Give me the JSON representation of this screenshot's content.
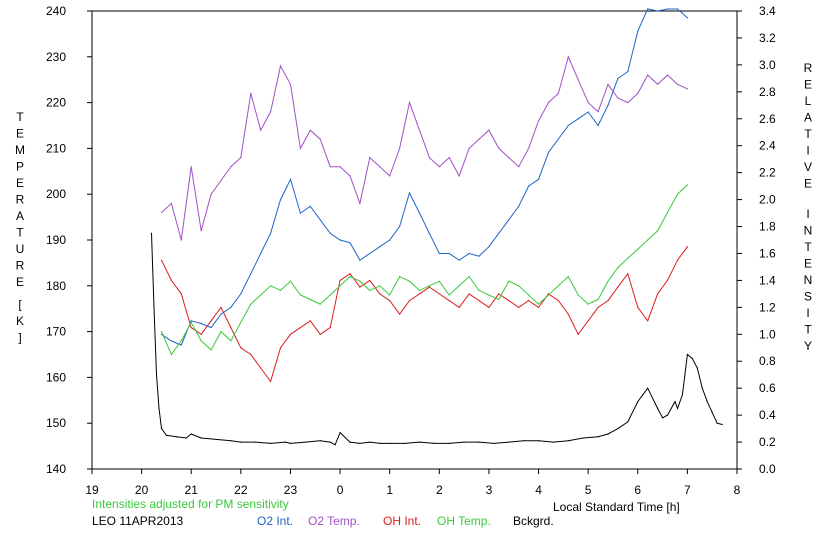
{
  "chart_data": {
    "type": "line",
    "title": "",
    "xlabel": "Local Standard Time [h]",
    "ylabel_left": "TEMPERATURE [K]",
    "ylabel_right": "RELATIVE INTENSITY",
    "note": "Intensities adjusted for PM sensitivity",
    "station": "LEO 11APR2013",
    "x_tick_labels": [
      "19",
      "20",
      "21",
      "22",
      "23",
      "0",
      "1",
      "2",
      "3",
      "4",
      "5",
      "6",
      "7",
      "8"
    ],
    "xlim": [
      19,
      32
    ],
    "ylim_left": [
      140,
      240
    ],
    "ylim_right": [
      0.0,
      3.4
    ],
    "y_left_ticks": [
      140,
      150,
      160,
      170,
      180,
      190,
      200,
      210,
      220,
      230,
      240
    ],
    "y_right_ticks": [
      "0.0",
      "0.2",
      "0.4",
      "0.6",
      "0.8",
      "1.0",
      "1.2",
      "1.4",
      "1.6",
      "1.8",
      "2.0",
      "2.2",
      "2.4",
      "2.6",
      "2.8",
      "3.0",
      "3.2",
      "3.4"
    ],
    "grid": false,
    "legend_position": "bottom",
    "series": [
      {
        "name": "O2 Int.",
        "axis": "right",
        "color": "#1e64c8",
        "x": [
          20.4,
          20.6,
          20.8,
          21.0,
          21.2,
          21.4,
          21.6,
          21.8,
          22.0,
          22.2,
          22.4,
          22.6,
          22.8,
          23.0,
          23.2,
          23.4,
          23.6,
          23.8,
          24.0,
          24.2,
          24.4,
          24.6,
          24.8,
          25.0,
          25.2,
          25.4,
          25.6,
          25.8,
          26.0,
          26.2,
          26.4,
          26.6,
          26.8,
          27.0,
          27.2,
          27.4,
          27.6,
          27.8,
          28.0,
          28.2,
          28.4,
          28.6,
          28.8,
          29.0,
          29.2,
          29.4,
          29.6,
          29.8,
          30.0,
          30.2,
          30.4,
          30.6,
          30.8,
          31.0
        ],
        "y": [
          1.0,
          0.95,
          0.92,
          1.1,
          1.08,
          1.05,
          1.15,
          1.2,
          1.3,
          1.45,
          1.6,
          1.75,
          2.0,
          2.15,
          1.9,
          1.95,
          1.85,
          1.75,
          1.7,
          1.68,
          1.55,
          1.6,
          1.65,
          1.7,
          1.8,
          2.05,
          1.9,
          1.75,
          1.6,
          1.6,
          1.55,
          1.6,
          1.58,
          1.65,
          1.75,
          1.85,
          1.95,
          2.1,
          2.15,
          2.35,
          2.45,
          2.55,
          2.6,
          2.65,
          2.55,
          2.7,
          2.9,
          2.95,
          3.25,
          3.45,
          3.4,
          3.5,
          3.45,
          3.35
        ]
      },
      {
        "name": "O2 Temp.",
        "axis": "left",
        "color": "#a050c8",
        "x": [
          20.4,
          20.6,
          20.8,
          21.0,
          21.2,
          21.4,
          21.6,
          21.8,
          22.0,
          22.2,
          22.4,
          22.6,
          22.8,
          23.0,
          23.2,
          23.4,
          23.6,
          23.8,
          24.0,
          24.2,
          24.4,
          24.6,
          24.8,
          25.0,
          25.2,
          25.4,
          25.6,
          25.8,
          26.0,
          26.2,
          26.4,
          26.6,
          26.8,
          27.0,
          27.2,
          27.4,
          27.6,
          27.8,
          28.0,
          28.2,
          28.4,
          28.6,
          28.8,
          29.0,
          29.2,
          29.4,
          29.6,
          29.8,
          30.0,
          30.2,
          30.4,
          30.6,
          30.8,
          31.0
        ],
        "y": [
          196,
          198,
          190,
          206,
          192,
          200,
          203,
          206,
          208,
          222,
          214,
          218,
          228,
          224,
          210,
          214,
          212,
          206,
          206,
          204,
          198,
          208,
          206,
          204,
          210,
          220,
          214,
          208,
          206,
          208,
          204,
          210,
          212,
          214,
          210,
          208,
          206,
          210,
          216,
          220,
          222,
          230,
          225,
          220,
          218,
          224,
          221,
          220,
          222,
          226,
          224,
          226,
          224,
          223
        ]
      },
      {
        "name": "OH Int.",
        "axis": "right",
        "color": "#dc1e1e",
        "x": [
          20.4,
          20.6,
          20.8,
          21.0,
          21.2,
          21.4,
          21.6,
          21.8,
          22.0,
          22.2,
          22.4,
          22.6,
          22.8,
          23.0,
          23.2,
          23.4,
          23.6,
          23.8,
          24.0,
          24.2,
          24.4,
          24.6,
          24.8,
          25.0,
          25.2,
          25.4,
          25.6,
          25.8,
          26.0,
          26.2,
          26.4,
          26.6,
          26.8,
          27.0,
          27.2,
          27.4,
          27.6,
          27.8,
          28.0,
          28.2,
          28.4,
          28.6,
          28.8,
          29.0,
          29.2,
          29.4,
          29.6,
          29.8,
          30.0,
          30.2,
          30.4,
          30.6,
          30.8,
          31.0
        ],
        "y": [
          1.55,
          1.4,
          1.3,
          1.05,
          1.0,
          1.1,
          1.2,
          1.05,
          0.9,
          0.85,
          0.75,
          0.65,
          0.9,
          1.0,
          1.05,
          1.1,
          1.0,
          1.05,
          1.4,
          1.45,
          1.35,
          1.4,
          1.3,
          1.25,
          1.15,
          1.25,
          1.3,
          1.35,
          1.3,
          1.25,
          1.2,
          1.3,
          1.25,
          1.2,
          1.3,
          1.25,
          1.2,
          1.25,
          1.2,
          1.3,
          1.25,
          1.15,
          1.0,
          1.1,
          1.2,
          1.25,
          1.35,
          1.45,
          1.2,
          1.1,
          1.3,
          1.4,
          1.55,
          1.65
        ]
      },
      {
        "name": "OH Temp.",
        "axis": "left",
        "color": "#3cc83c",
        "x": [
          20.4,
          20.6,
          20.8,
          21.0,
          21.2,
          21.4,
          21.6,
          21.8,
          22.0,
          22.2,
          22.4,
          22.6,
          22.8,
          23.0,
          23.2,
          23.4,
          23.6,
          23.8,
          24.0,
          24.2,
          24.4,
          24.6,
          24.8,
          25.0,
          25.2,
          25.4,
          25.6,
          25.8,
          26.0,
          26.2,
          26.4,
          26.6,
          26.8,
          27.0,
          27.2,
          27.4,
          27.6,
          27.8,
          28.0,
          28.2,
          28.4,
          28.6,
          28.8,
          29.0,
          29.2,
          29.4,
          29.6,
          29.8,
          30.0,
          30.2,
          30.4,
          30.6,
          30.8,
          31.0
        ],
        "y": [
          170,
          165,
          168,
          172,
          168,
          166,
          170,
          168,
          172,
          176,
          178,
          180,
          179,
          181,
          178,
          177,
          176,
          178,
          180,
          182,
          181,
          179,
          180,
          178,
          182,
          181,
          179,
          180,
          181,
          178,
          180,
          182,
          179,
          178,
          177,
          181,
          180,
          178,
          176,
          178,
          180,
          182,
          178,
          176,
          177,
          181,
          184,
          186,
          188,
          190,
          192,
          196,
          200,
          202
        ]
      },
      {
        "name": "Bckgrd.",
        "axis": "right",
        "color": "#000000",
        "x": [
          20.2,
          20.25,
          20.3,
          20.35,
          20.4,
          20.5,
          20.7,
          20.9,
          21.0,
          21.2,
          21.5,
          21.8,
          22.0,
          22.3,
          22.6,
          22.9,
          23.0,
          23.3,
          23.6,
          23.8,
          23.9,
          24.0,
          24.2,
          24.4,
          24.6,
          24.8,
          25.0,
          25.3,
          25.6,
          25.9,
          26.2,
          26.5,
          26.8,
          27.1,
          27.4,
          27.7,
          28.0,
          28.3,
          28.6,
          28.9,
          29.2,
          29.4,
          29.6,
          29.8,
          30.0,
          30.1,
          30.2,
          30.4,
          30.5,
          30.6,
          30.75,
          30.8,
          30.9,
          31.0,
          31.1,
          31.2,
          31.3,
          31.4,
          31.5,
          31.6,
          31.7
        ],
        "y": [
          1.75,
          1.2,
          0.7,
          0.45,
          0.3,
          0.25,
          0.24,
          0.23,
          0.26,
          0.23,
          0.22,
          0.21,
          0.2,
          0.2,
          0.19,
          0.2,
          0.19,
          0.2,
          0.21,
          0.2,
          0.18,
          0.27,
          0.2,
          0.19,
          0.2,
          0.19,
          0.19,
          0.19,
          0.2,
          0.19,
          0.19,
          0.2,
          0.2,
          0.19,
          0.2,
          0.21,
          0.21,
          0.2,
          0.21,
          0.23,
          0.24,
          0.26,
          0.3,
          0.35,
          0.5,
          0.55,
          0.6,
          0.45,
          0.38,
          0.4,
          0.5,
          0.45,
          0.55,
          0.85,
          0.82,
          0.75,
          0.6,
          0.5,
          0.42,
          0.34,
          0.33
        ]
      }
    ]
  }
}
